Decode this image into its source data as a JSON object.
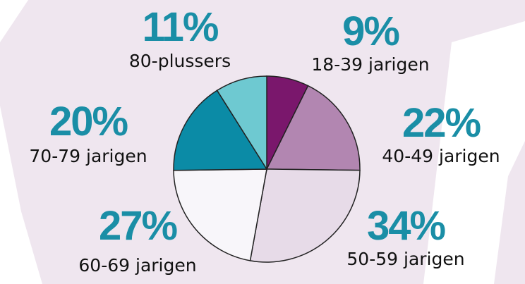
{
  "chart_data": {
    "type": "pie",
    "categories": [
      "18-39 jarigen",
      "40-49 jarigen",
      "50-59 jarigen",
      "60-69 jarigen",
      "70-79 jarigen",
      "80-plussers"
    ],
    "values": [
      9,
      22,
      34,
      27,
      20,
      11
    ],
    "value_labels": [
      "9%",
      "22%",
      "34%",
      "27%",
      "20%",
      "11%"
    ],
    "colors": [
      "#7a176c",
      "#b286b1",
      "#e7dbe8",
      "#f8f6fa",
      "#0b8ba6",
      "#6ec9d1"
    ]
  }
}
